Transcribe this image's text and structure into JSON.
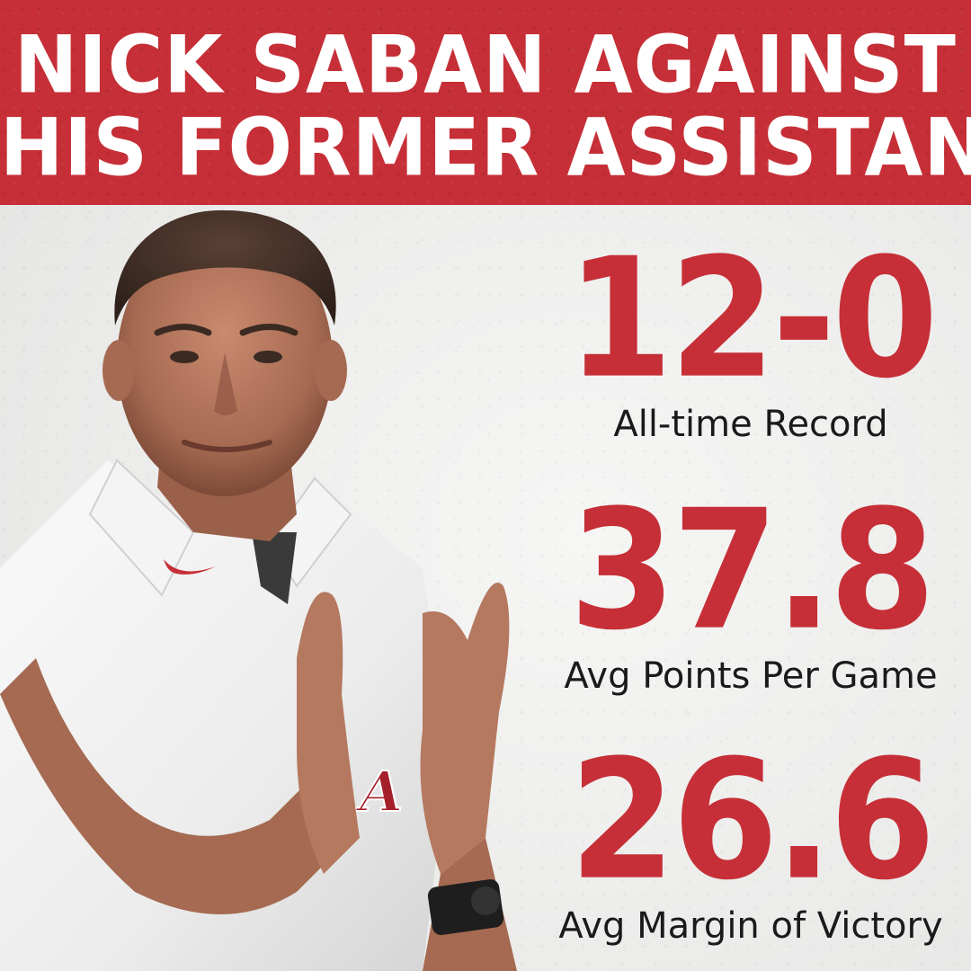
{
  "header": {
    "line1": "NICK SABAN AGAINST",
    "line2": "HIS FORMER ASSISTANTS"
  },
  "stats": [
    {
      "value": "12-0",
      "label": "All-time Record"
    },
    {
      "value": "37.8",
      "label": "Avg Points Per Game"
    },
    {
      "value": "26.6",
      "label": "Avg Margin of Victory"
    }
  ],
  "colors": {
    "brand_red": "#c62f37",
    "background": "#ebebea",
    "header_text": "#ffffff",
    "label_text": "#1a1a1a"
  },
  "icons": {
    "shirt_logo": "swoosh-icon",
    "shirt_crest": "script-a-icon"
  }
}
